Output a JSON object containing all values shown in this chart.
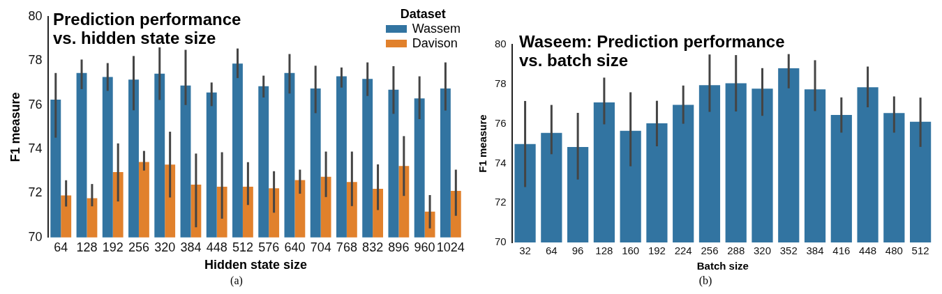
{
  "chart_data": [
    {
      "type": "bar",
      "title": "Prediction performance vs. hidden state size",
      "xlabel": "Hidden state size",
      "ylabel": "F1 measure",
      "legend_title": "Dataset",
      "legend": "top right",
      "grid": false,
      "categories": [
        "64",
        "128",
        "192",
        "256",
        "320",
        "384",
        "448",
        "512",
        "576",
        "640",
        "704",
        "768",
        "832",
        "896",
        "960",
        "1024"
      ],
      "ylim": [
        70,
        80
      ],
      "yticks": [
        70,
        72,
        74,
        76,
        78,
        80
      ],
      "series": [
        {
          "name": "Wassem",
          "color": "#3274a1",
          "values": [
            76.24,
            77.45,
            77.27,
            77.15,
            77.42,
            76.88,
            76.57,
            77.88,
            76.85,
            77.45,
            76.75,
            77.3,
            77.18,
            76.69,
            76.3,
            76.75
          ],
          "errors": [
            [
              74.52,
              77.45
            ],
            [
              76.72,
              78.06
            ],
            [
              76.64,
              77.9
            ],
            [
              75.76,
              78.22
            ],
            [
              76.23,
              78.61
            ],
            [
              76.0,
              78.5
            ],
            [
              75.95,
              77.02
            ],
            [
              77.22,
              78.56
            ],
            [
              76.34,
              77.33
            ],
            [
              76.52,
              78.31
            ],
            [
              75.63,
              77.78
            ],
            [
              76.79,
              77.7
            ],
            [
              76.41,
              77.93
            ],
            [
              75.6,
              77.76
            ],
            [
              75.36,
              77.3
            ],
            [
              75.75,
              77.93
            ]
          ]
        },
        {
          "name": "Davison",
          "color": "#e1812c",
          "values": [
            71.9,
            71.78,
            72.96,
            73.42,
            73.3,
            72.39,
            72.3,
            72.3,
            72.23,
            72.6,
            72.75,
            72.51,
            72.2,
            73.24,
            71.17,
            72.11
          ],
          "errors": [
            [
              71.4,
              72.59
            ],
            [
              71.41,
              72.42
            ],
            [
              71.63,
              74.26
            ],
            [
              73.03,
              73.92
            ],
            [
              71.81,
              74.79
            ],
            [
              70.46,
              73.8
            ],
            [
              70.85,
              73.86
            ],
            [
              71.47,
              73.41
            ],
            [
              71.12,
              73.0
            ],
            [
              71.98,
              73.07
            ],
            [
              71.83,
              73.89
            ],
            [
              71.42,
              73.89
            ],
            [
              71.24,
              73.31
            ],
            [
              71.88,
              74.59
            ],
            [
              70.41,
              71.92
            ],
            [
              70.98,
              73.07
            ]
          ]
        }
      ],
      "annotations": [
        "(a)"
      ]
    },
    {
      "type": "bar",
      "title": "Waseem: Prediction performance vs. batch size",
      "xlabel": "Batch size",
      "ylabel": "F1 measure",
      "grid": false,
      "categories": [
        "32",
        "64",
        "96",
        "128",
        "160",
        "192",
        "224",
        "256",
        "288",
        "320",
        "352",
        "384",
        "416",
        "448",
        "480",
        "512"
      ],
      "ylim": [
        70,
        80
      ],
      "yticks": [
        70,
        72,
        74,
        76,
        78,
        80
      ],
      "series": [
        {
          "color": "#3274a1",
          "values": [
            74.97,
            75.54,
            74.82,
            77.08,
            75.64,
            76.02,
            76.95,
            77.95,
            78.05,
            77.77,
            78.8,
            77.74,
            76.44,
            77.84,
            76.54,
            76.1
          ],
          "errors": [
            [
              72.8,
              77.15
            ],
            [
              74.46,
              76.95
            ],
            [
              73.18,
              76.55
            ],
            [
              75.97,
              78.33
            ],
            [
              73.85,
              77.59
            ],
            [
              74.86,
              77.16
            ],
            [
              76.0,
              77.93
            ],
            [
              76.6,
              79.5
            ],
            [
              76.62,
              79.47
            ],
            [
              76.4,
              78.81
            ],
            [
              77.79,
              79.52
            ],
            [
              76.64,
              79.21
            ],
            [
              75.55,
              77.33
            ],
            [
              76.83,
              78.89
            ],
            [
              75.55,
              77.38
            ],
            [
              74.83,
              77.32
            ]
          ]
        }
      ],
      "annotations": [
        "(b)"
      ]
    }
  ]
}
